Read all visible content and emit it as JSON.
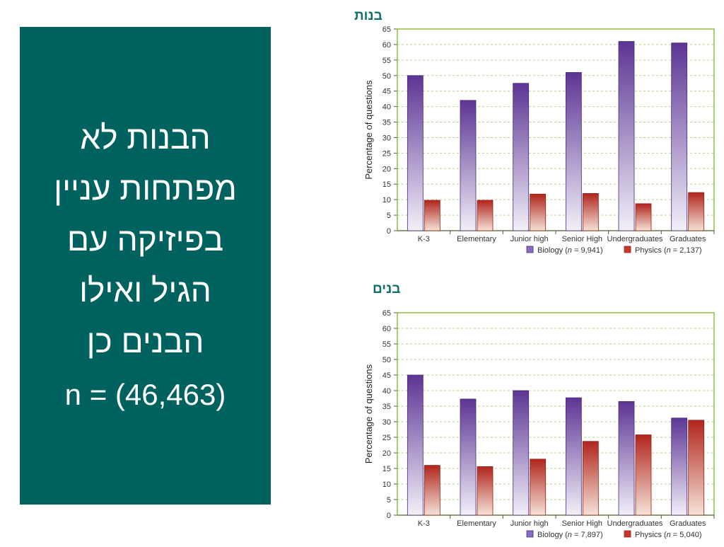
{
  "slide": {
    "lines": [
      "הבנות לא",
      "מפתחות עניין",
      "בפיזיקה עם",
      "הגיל ואילו",
      "הבנים כן"
    ],
    "n_text": "n = (46,463)"
  },
  "colors": {
    "panel": "#00625e",
    "heading": "#0f6f6a",
    "biology_top": "#5c3594",
    "biology_bottom": "#f2eff8",
    "physics_top": "#b0251c",
    "physics_bottom": "#f5e2d8",
    "frame": "#8fbf3a",
    "grid": "#b9d48a"
  },
  "chart_data": [
    {
      "type": "bar",
      "heading": "בנות",
      "categories": [
        "K-3",
        "Elementary",
        "Junior high",
        "Senior High",
        "Undergraduates",
        "Graduates"
      ],
      "ylabel": "Percentage of questions",
      "ylim": [
        0,
        65
      ],
      "yticks": [
        0,
        5,
        10,
        15,
        20,
        25,
        30,
        35,
        40,
        45,
        50,
        55,
        60,
        65
      ],
      "series": [
        {
          "name": "Biology",
          "n": "9,941",
          "values": [
            50,
            42,
            47.5,
            51,
            61,
            60.5
          ]
        },
        {
          "name": "Physics",
          "n": "2,137",
          "values": [
            9.8,
            9.8,
            11.8,
            12,
            8.7,
            12.3
          ]
        }
      ],
      "grid": "dashed horizontal",
      "legend": "bottom-right"
    },
    {
      "type": "bar",
      "heading": "בנים",
      "categories": [
        "K-3",
        "Elementary",
        "Junior high",
        "Senior High",
        "Undergraduates",
        "Graduates"
      ],
      "ylabel": "Percentage of questions",
      "ylim": [
        0,
        65
      ],
      "yticks": [
        0,
        5,
        10,
        15,
        20,
        25,
        30,
        35,
        40,
        45,
        50,
        55,
        60,
        65
      ],
      "series": [
        {
          "name": "Biology",
          "n": "7,897",
          "values": [
            45,
            37.3,
            40,
            37.7,
            36.5,
            31.2
          ]
        },
        {
          "name": "Physics",
          "n": "5,040",
          "values": [
            16,
            15.6,
            18,
            23.7,
            25.8,
            30.5
          ]
        }
      ],
      "grid": "dashed horizontal",
      "legend": "bottom-right"
    }
  ]
}
